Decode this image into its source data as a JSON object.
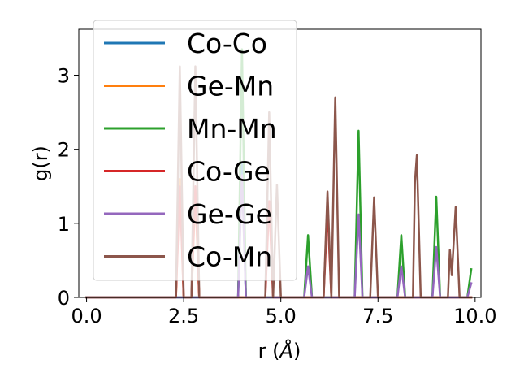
{
  "chart_data": {
    "type": "line",
    "xlabel_main": "r (",
    "xlabel_unit": "Å",
    "xlabel_close": ")",
    "ylabel": "g(r)",
    "xlim": [
      -0.2,
      10.15
    ],
    "ylim": [
      0,
      3.62
    ],
    "xticks": [
      0.0,
      2.5,
      5.0,
      7.5,
      10.0
    ],
    "xtick_labels": [
      "0.0",
      "2.5",
      "5.0",
      "7.5",
      "10.0"
    ],
    "yticks": [
      0,
      1,
      2,
      3
    ],
    "ytick_labels": [
      "0",
      "1",
      "2",
      "3"
    ],
    "legend_position": "upper-left",
    "series": [
      {
        "name": "Co-Co",
        "color": "#1f77b4",
        "points": [
          [
            0,
            0
          ],
          [
            3.9,
            0
          ],
          [
            4.0,
            1.8
          ],
          [
            4.1,
            0
          ],
          [
            9.9,
            0
          ]
        ]
      },
      {
        "name": "Ge-Mn",
        "color": "#ff7f0e",
        "points": [
          [
            0,
            0
          ],
          [
            2.3,
            0
          ],
          [
            2.4,
            1.6
          ],
          [
            2.5,
            0
          ],
          [
            2.7,
            0
          ],
          [
            2.8,
            1.4
          ],
          [
            2.9,
            0
          ],
          [
            9.9,
            0
          ]
        ]
      },
      {
        "name": "Mn-Mn",
        "color": "#2ca02c",
        "points": [
          [
            0,
            0
          ],
          [
            3.9,
            0
          ],
          [
            4.0,
            3.35
          ],
          [
            4.1,
            0
          ],
          [
            5.6,
            0
          ],
          [
            5.7,
            0.84
          ],
          [
            5.8,
            0
          ],
          [
            6.9,
            0
          ],
          [
            7.0,
            2.25
          ],
          [
            7.1,
            0
          ],
          [
            8.0,
            0
          ],
          [
            8.1,
            0.84
          ],
          [
            8.2,
            0
          ],
          [
            8.9,
            0
          ],
          [
            9.0,
            1.36
          ],
          [
            9.1,
            0
          ],
          [
            9.8,
            0
          ],
          [
            9.9,
            0.38
          ]
        ]
      },
      {
        "name": "Co-Ge",
        "color": "#d62728",
        "points": [
          [
            0,
            0
          ],
          [
            2.3,
            0
          ],
          [
            2.4,
            1.5
          ],
          [
            2.5,
            0
          ],
          [
            2.7,
            0
          ],
          [
            2.8,
            1.5
          ],
          [
            2.9,
            0
          ],
          [
            4.6,
            0
          ],
          [
            4.7,
            1.3
          ],
          [
            4.8,
            0
          ],
          [
            6.1,
            0
          ],
          [
            6.2,
            1.2
          ],
          [
            6.3,
            0
          ],
          [
            9.9,
            0
          ]
        ]
      },
      {
        "name": "Ge-Ge",
        "color": "#9467bd",
        "points": [
          [
            0,
            0
          ],
          [
            3.9,
            0
          ],
          [
            4.0,
            1.65
          ],
          [
            4.1,
            0
          ],
          [
            5.6,
            0
          ],
          [
            5.7,
            0.42
          ],
          [
            5.8,
            0
          ],
          [
            6.9,
            0
          ],
          [
            7.0,
            1.12
          ],
          [
            7.1,
            0
          ],
          [
            8.0,
            0
          ],
          [
            8.1,
            0.42
          ],
          [
            8.2,
            0
          ],
          [
            8.9,
            0
          ],
          [
            9.0,
            0.68
          ],
          [
            9.1,
            0
          ],
          [
            9.8,
            0
          ],
          [
            9.9,
            0.19
          ]
        ]
      },
      {
        "name": "Co-Mn",
        "color": "#8c564b",
        "points": [
          [
            0,
            0
          ],
          [
            2.3,
            0
          ],
          [
            2.4,
            3.12
          ],
          [
            2.5,
            0
          ],
          [
            2.7,
            0
          ],
          [
            2.8,
            3.12
          ],
          [
            2.9,
            0
          ],
          [
            4.6,
            0
          ],
          [
            4.7,
            2.5
          ],
          [
            4.8,
            0
          ],
          [
            4.9,
            1.52
          ],
          [
            5.0,
            0
          ],
          [
            6.1,
            0
          ],
          [
            6.2,
            1.43
          ],
          [
            6.3,
            0
          ],
          [
            6.4,
            2.7
          ],
          [
            6.5,
            0
          ],
          [
            7.3,
            0
          ],
          [
            7.4,
            1.35
          ],
          [
            7.5,
            0
          ],
          [
            8.4,
            0
          ],
          [
            8.45,
            1.55
          ],
          [
            8.5,
            1.92
          ],
          [
            8.6,
            0
          ],
          [
            9.3,
            0
          ],
          [
            9.35,
            0.64
          ],
          [
            9.4,
            0.3
          ],
          [
            9.5,
            1.22
          ],
          [
            9.6,
            0
          ],
          [
            9.9,
            0
          ]
        ]
      }
    ]
  }
}
